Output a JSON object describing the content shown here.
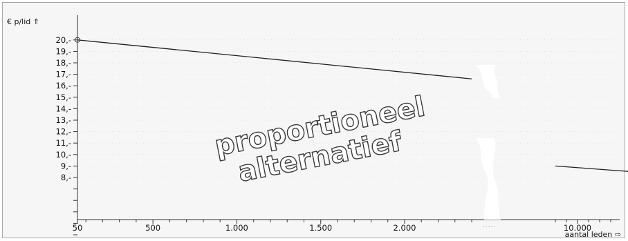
{
  "chart_data": {
    "type": "line",
    "ylabel": "€ p/lid ⇑",
    "xlabel": "aantal leden ⇨",
    "overlay": [
      "proportioneel",
      "alternatief"
    ],
    "y_ticks": [
      "8,-",
      "9,-",
      "10,-",
      "11,-",
      "12,-",
      "13,-",
      "14,-",
      "15,-",
      "16,-",
      "17,-",
      "18,-",
      "19,-",
      "20,-"
    ],
    "x_ticks": [
      "50",
      "500",
      "1.000",
      "1.500",
      "2.000",
      "10.000"
    ],
    "axis_break_x": "between 2.000 and 10.000",
    "series": [
      {
        "segment": "left",
        "x": [
          50,
          2400
        ],
        "y": [
          20.0,
          16.6
        ]
      },
      {
        "segment": "right",
        "x": [
          9000,
          12500
        ],
        "y": [
          9.0,
          8.5
        ]
      }
    ]
  },
  "colors": {
    "line": "#202020",
    "background": "#f6f6f6",
    "grid": "#cfcfcf"
  }
}
